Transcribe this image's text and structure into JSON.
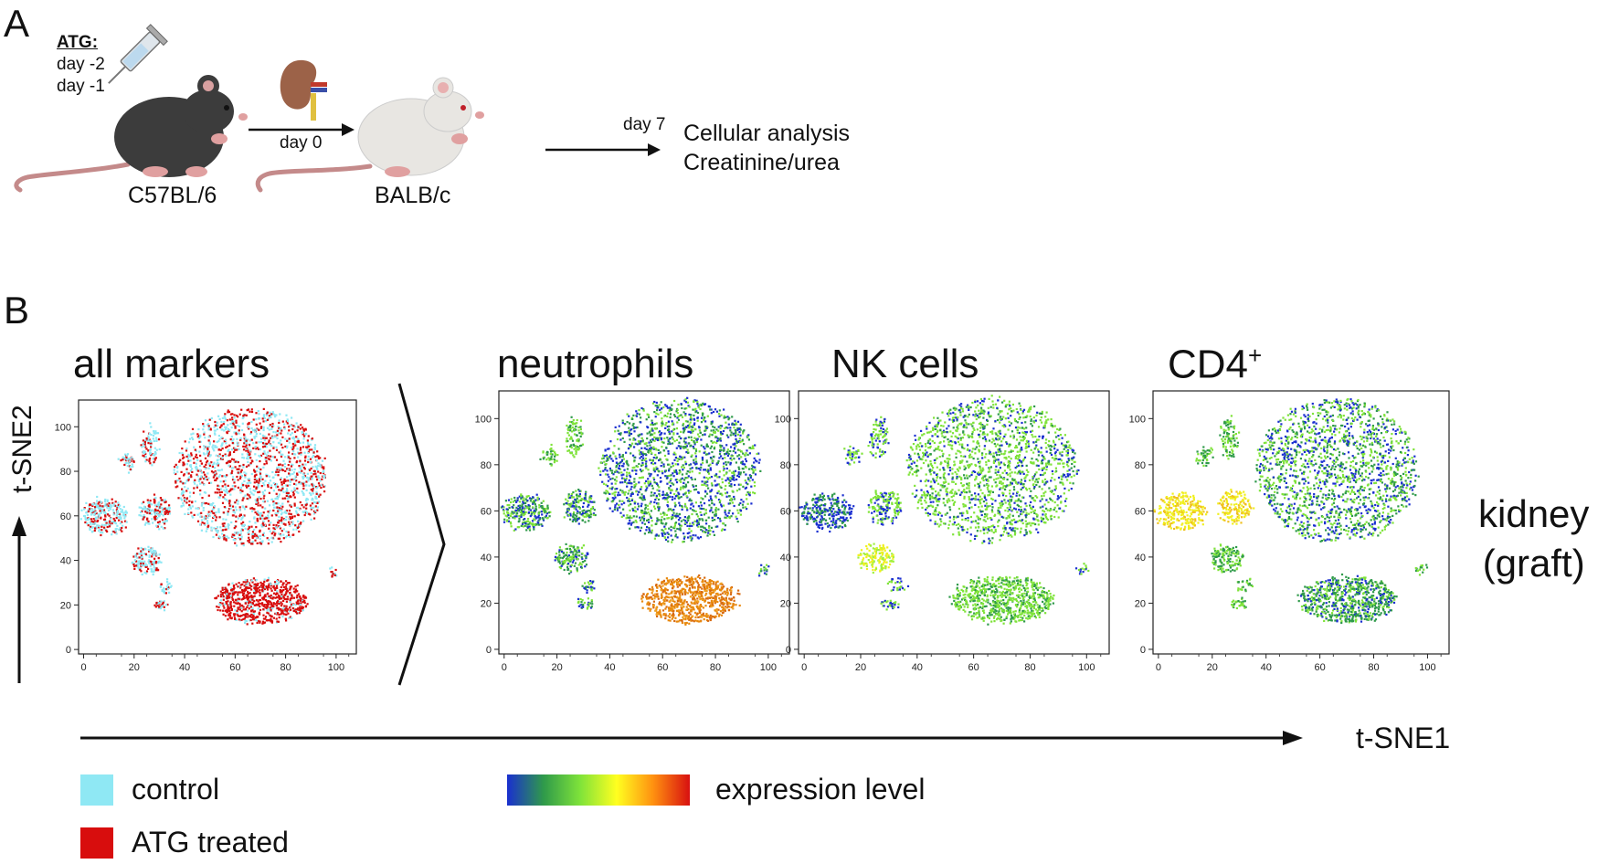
{
  "panel_a": {
    "letter": "A",
    "atg_label": "ATG:",
    "atg_days": [
      "day -2",
      "day -1"
    ],
    "donor": "C57BL/6",
    "recipient": "BALB/c",
    "transplant_day": "day 0",
    "analysis_day": "day 7",
    "outcomes": [
      "Cellular analysis",
      "Creatinine/urea"
    ]
  },
  "panel_b": {
    "letter": "B",
    "y_axis": "t-SNE2",
    "x_axis": "t-SNE1",
    "tissue_label": [
      "kidney",
      "(graft)"
    ],
    "plots": [
      {
        "title": "all markers"
      },
      {
        "title": "neutrophils"
      },
      {
        "title": "NK cells"
      },
      {
        "title": "CD4",
        "title_sup": "+"
      }
    ],
    "axis_ticks": [
      "0",
      "20",
      "40",
      "60",
      "80",
      "100"
    ],
    "legend": {
      "control_label": "control",
      "control_color": "#8fe8f4",
      "atg_label": "ATG treated",
      "atg_color": "#d80d0d",
      "expression_label": "expression level",
      "gradient_colors": [
        "#1a2fd0",
        "#2f9a4a",
        "#7fe33a",
        "#ffff20",
        "#ff9010",
        "#d81010"
      ]
    }
  }
}
